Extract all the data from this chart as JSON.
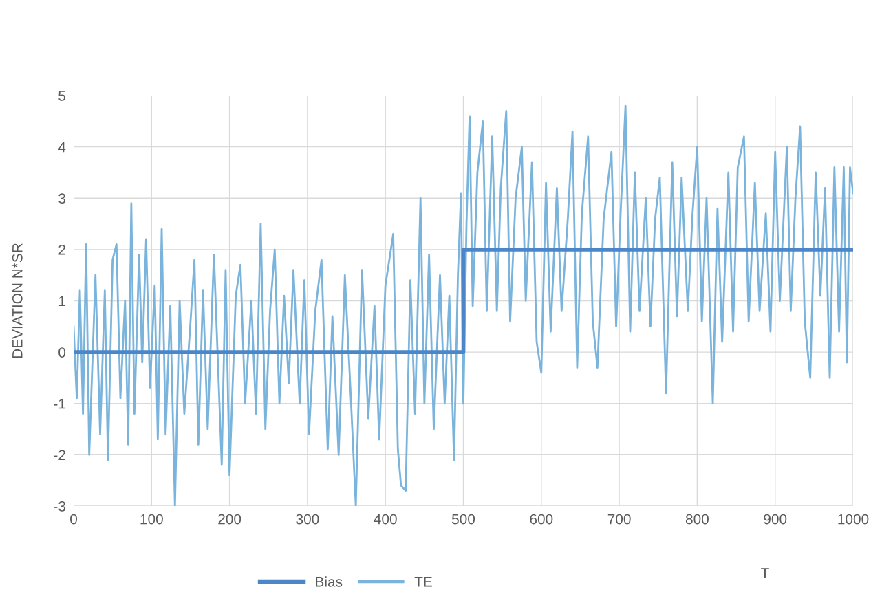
{
  "chart_data": {
    "type": "line",
    "xlabel": "T",
    "ylabel": "DEVIATION N*SR",
    "xlim": [
      0,
      1000
    ],
    "xticks": [
      0,
      100,
      200,
      300,
      400,
      500,
      600,
      700,
      800,
      900,
      1000
    ],
    "ylim": [
      -3,
      5
    ],
    "yticks": [
      -3,
      -2,
      -1,
      0,
      1,
      2,
      3,
      4,
      5
    ],
    "grid": true,
    "legend": "bottom",
    "marker": "none",
    "line_style": "solid",
    "series": [
      {
        "name": "Bias",
        "color": "#4a86c8",
        "x": [
          0,
          500,
          500,
          1000
        ],
        "values": [
          0,
          0,
          2,
          2
        ]
      },
      {
        "name": "TE",
        "color": "#7ab4dc",
        "x": [
          0,
          4,
          8,
          12,
          16,
          20,
          28,
          34,
          40,
          44,
          50,
          55,
          60,
          66,
          70,
          74,
          78,
          84,
          88,
          93,
          98,
          104,
          108,
          113,
          118,
          124,
          130,
          136,
          142,
          150,
          155,
          160,
          166,
          172,
          180,
          190,
          195,
          200,
          208,
          214,
          220,
          228,
          234,
          240,
          246,
          252,
          258,
          264,
          270,
          276,
          282,
          290,
          296,
          302,
          310,
          318,
          326,
          332,
          340,
          348,
          356,
          362,
          370,
          378,
          386,
          392,
          400,
          410,
          416,
          420,
          426,
          432,
          438,
          445,
          450,
          456,
          462,
          470,
          476,
          482,
          488,
          493,
          497,
          500,
          504,
          508,
          512,
          518,
          525,
          530,
          537,
          543,
          548,
          555,
          560,
          567,
          575,
          580,
          588,
          594,
          600,
          606,
          612,
          620,
          626,
          634,
          640,
          646,
          652,
          660,
          666,
          672,
          680,
          690,
          696,
          702,
          708,
          714,
          720,
          726,
          734,
          740,
          746,
          752,
          760,
          768,
          774,
          780,
          788,
          794,
          800,
          806,
          812,
          820,
          826,
          832,
          840,
          846,
          852,
          860,
          866,
          874,
          880,
          888,
          894,
          900,
          906,
          915,
          920,
          926,
          932,
          938,
          945,
          952,
          958,
          964,
          970,
          976,
          982,
          988,
          992,
          996,
          1000
        ],
        "values": [
          0.5,
          -0.9,
          1.2,
          -1.2,
          2.1,
          -2.0,
          1.5,
          -1.6,
          1.2,
          -2.1,
          1.8,
          2.1,
          -0.9,
          1.0,
          -1.8,
          2.9,
          -1.2,
          1.9,
          -0.2,
          2.2,
          -0.7,
          1.3,
          -1.7,
          2.4,
          -1.6,
          0.9,
          -3.0,
          1.0,
          -1.2,
          0.6,
          1.8,
          -1.8,
          1.2,
          -1.5,
          1.9,
          -2.2,
          1.6,
          -2.4,
          1.1,
          1.7,
          -1.0,
          1.0,
          -1.2,
          2.5,
          -1.5,
          0.8,
          2.0,
          -1.0,
          1.1,
          -0.6,
          1.6,
          -1.0,
          1.4,
          -1.6,
          0.8,
          1.8,
          -1.9,
          0.7,
          -2.0,
          1.5,
          -1.0,
          -3.0,
          1.6,
          -1.3,
          0.9,
          -1.7,
          1.3,
          2.3,
          -1.9,
          -2.6,
          -2.7,
          1.4,
          -1.2,
          3.0,
          -1.0,
          1.9,
          -1.5,
          1.5,
          -1.0,
          1.1,
          -2.1,
          1.5,
          3.1,
          -1.0,
          2.5,
          4.6,
          0.9,
          3.5,
          4.5,
          0.8,
          4.2,
          0.8,
          3.2,
          4.7,
          0.6,
          3.0,
          4.0,
          1.0,
          3.7,
          0.2,
          -0.4,
          3.3,
          0.4,
          3.2,
          0.8,
          2.6,
          4.3,
          -0.3,
          2.7,
          4.2,
          0.6,
          -0.3,
          2.6,
          3.9,
          0.5,
          2.8,
          4.8,
          0.4,
          3.5,
          0.8,
          3.0,
          0.5,
          2.6,
          3.4,
          -0.8,
          3.7,
          0.7,
          3.4,
          0.8,
          2.7,
          4.0,
          0.6,
          3.0,
          -1.0,
          2.8,
          0.2,
          3.5,
          0.4,
          3.6,
          4.2,
          0.6,
          3.3,
          0.8,
          2.7,
          0.4,
          3.9,
          1.0,
          4.0,
          0.8,
          3.0,
          4.4,
          0.6,
          -0.5,
          3.5,
          1.1,
          3.2,
          -0.5,
          3.6,
          0.4,
          3.6,
          -0.2,
          3.6,
          3.1
        ]
      }
    ]
  }
}
